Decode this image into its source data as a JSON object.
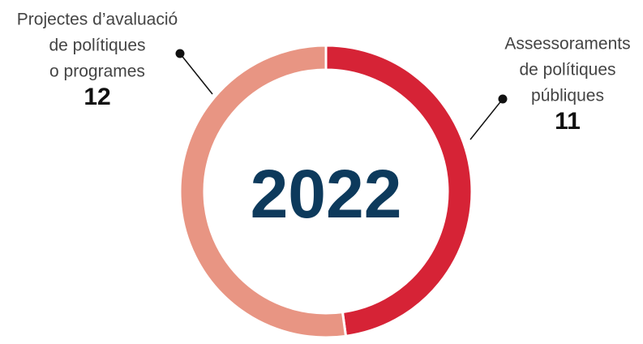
{
  "chart_data": {
    "type": "donut",
    "center_text": "2022",
    "categories": [
      [
        "Assessoraments",
        "de  polítiques",
        "públiques"
      ],
      [
        "Projectes d’avaluació",
        "de polítiques",
        "o programes"
      ]
    ],
    "values": [
      11,
      12
    ],
    "colors": [
      "#d62336",
      "#e89583"
    ]
  }
}
